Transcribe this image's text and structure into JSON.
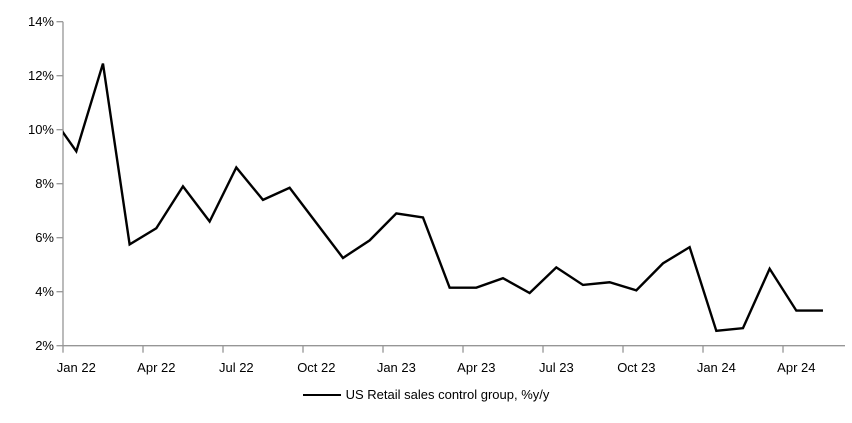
{
  "chart_data": {
    "type": "line",
    "title": "",
    "xlabel": "",
    "ylabel": "",
    "x": [
      "Dec 21",
      "Jan 22",
      "Feb 22",
      "Mar 22",
      "Apr 22",
      "May 22",
      "Jun 22",
      "Jul 22",
      "Aug 22",
      "Sep 22",
      "Oct 22",
      "Nov 22",
      "Dec 22",
      "Jan 23",
      "Feb 23",
      "Mar 23",
      "Apr 23",
      "May 23",
      "Jun 23",
      "Jul 23",
      "Aug 23",
      "Sep 23",
      "Oct 23",
      "Nov 23",
      "Dec 23",
      "Jan 24",
      "Feb 24",
      "Mar 24",
      "Apr 24",
      "May 24"
    ],
    "series": [
      {
        "name": "US Retail sales control group, %y/y",
        "color": "#000000",
        "values": [
          10.6,
          9.2,
          12.45,
          5.75,
          6.35,
          7.9,
          6.6,
          8.6,
          7.4,
          7.85,
          6.55,
          5.25,
          5.9,
          6.9,
          6.75,
          4.15,
          4.15,
          4.5,
          3.95,
          4.9,
          4.25,
          4.35,
          4.05,
          5.05,
          5.65,
          2.55,
          2.65,
          4.85,
          3.3,
          3.3
        ]
      }
    ],
    "first_point_partially_clipped": true,
    "x_tick_labels": [
      "Jan 22",
      "Apr 22",
      "Jul 22",
      "Oct 22",
      "Jan 23",
      "Apr 23",
      "Jul 23",
      "Oct 23",
      "Jan 24",
      "Apr 24"
    ],
    "x_ticks_every_n_points": 3,
    "y_tick_labels": [
      "14%",
      "12%",
      "10%",
      "8%",
      "6%",
      "4%",
      "2%"
    ],
    "ylim": [
      2,
      14
    ],
    "y_tick_step": 2,
    "grid": false,
    "legend_position": "bottom-center",
    "axis_color": "#969696",
    "background": "#ffffff"
  }
}
